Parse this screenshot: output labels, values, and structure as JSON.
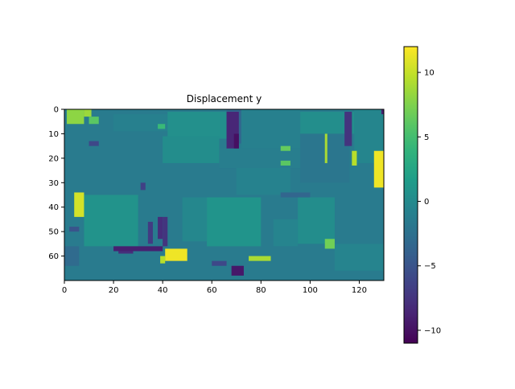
{
  "chart_data": {
    "type": "heatmap",
    "title": "Displacement y",
    "xlabel": "",
    "ylabel": "",
    "colormap": "viridis",
    "x_ticks": [
      0,
      20,
      40,
      60,
      80,
      100,
      120
    ],
    "y_ticks": [
      0,
      10,
      20,
      30,
      40,
      50,
      60
    ],
    "x_range": [
      0,
      130
    ],
    "y_range": [
      0,
      70
    ],
    "y_inverted": true,
    "color_range": [
      -11,
      12
    ],
    "colorbar_ticks": [
      10,
      5,
      0,
      -5,
      -10
    ],
    "colorbar_tick_labels": [
      "10",
      "5",
      "0",
      "−5",
      "−10"
    ],
    "background_value": -1.5,
    "blocks": [
      {
        "x": [
          0,
          130
        ],
        "y": [
          0,
          70
        ],
        "v": -1.5
      },
      {
        "x": [
          20,
          42
        ],
        "y": [
          2,
          9
        ],
        "v": -1.0
      },
      {
        "x": [
          42,
          66
        ],
        "y": [
          1,
          12
        ],
        "v": 0.5
      },
      {
        "x": [
          66,
          72
        ],
        "y": [
          0,
          14
        ],
        "v": -3.5
      },
      {
        "x": [
          72,
          96
        ],
        "y": [
          0,
          16
        ],
        "v": -1.0
      },
      {
        "x": [
          96,
          118
        ],
        "y": [
          1,
          10
        ],
        "v": 0.3
      },
      {
        "x": [
          118,
          130
        ],
        "y": [
          0,
          22
        ],
        "v": -0.5
      },
      {
        "x": [
          40,
          63
        ],
        "y": [
          11,
          22
        ],
        "v": 0.2
      },
      {
        "x": [
          63,
          100
        ],
        "y": [
          16,
          24
        ],
        "v": -1.2
      },
      {
        "x": [
          96,
          116
        ],
        "y": [
          10,
          30
        ],
        "v": -2.0
      },
      {
        "x": [
          70,
          92
        ],
        "y": [
          24,
          35
        ],
        "v": -0.8
      },
      {
        "x": [
          8,
          30
        ],
        "y": [
          35,
          56
        ],
        "v": 0.8
      },
      {
        "x": [
          48,
          58
        ],
        "y": [
          36,
          54
        ],
        "v": -0.3
      },
      {
        "x": [
          58,
          80
        ],
        "y": [
          36,
          56
        ],
        "v": 0.9
      },
      {
        "x": [
          95,
          110
        ],
        "y": [
          36,
          55
        ],
        "v": 0.2
      },
      {
        "x": [
          85,
          95
        ],
        "y": [
          45,
          56
        ],
        "v": -0.6
      },
      {
        "x": [
          110,
          130
        ],
        "y": [
          55,
          66
        ],
        "v": -0.6
      },
      {
        "x": [
          0,
          6
        ],
        "y": [
          56,
          64
        ],
        "v": -3.0
      },
      {
        "x": [
          88,
          100
        ],
        "y": [
          34,
          36
        ],
        "v": -3.5
      },
      {
        "x": [
          1,
          8
        ],
        "y": [
          0,
          6
        ],
        "v": 8.0
      },
      {
        "x": [
          8,
          11
        ],
        "y": [
          0,
          3
        ],
        "v": 8.5
      },
      {
        "x": [
          10,
          14
        ],
        "y": [
          3,
          6
        ],
        "v": 6.0
      },
      {
        "x": [
          4,
          8
        ],
        "y": [
          34,
          44
        ],
        "v": 10.5
      },
      {
        "x": [
          38,
          41
        ],
        "y": [
          6,
          8
        ],
        "v": 4.5
      },
      {
        "x": [
          39,
          41
        ],
        "y": [
          60,
          63
        ],
        "v": 9.5
      },
      {
        "x": [
          41,
          50
        ],
        "y": [
          57,
          62
        ],
        "v": 11.5
      },
      {
        "x": [
          75,
          84
        ],
        "y": [
          60,
          62
        ],
        "v": 9.0
      },
      {
        "x": [
          88,
          92
        ],
        "y": [
          15,
          17
        ],
        "v": 6.5
      },
      {
        "x": [
          88,
          92
        ],
        "y": [
          21,
          23
        ],
        "v": 6.0
      },
      {
        "x": [
          106,
          107
        ],
        "y": [
          10,
          22
        ],
        "v": 9.0
      },
      {
        "x": [
          117,
          119
        ],
        "y": [
          17,
          23
        ],
        "v": 9.5
      },
      {
        "x": [
          126,
          130
        ],
        "y": [
          17,
          32
        ],
        "v": 11.5
      },
      {
        "x": [
          106,
          110
        ],
        "y": [
          53,
          57
        ],
        "v": 7.0
      },
      {
        "x": [
          66,
          71
        ],
        "y": [
          1,
          16
        ],
        "v": -8.5
      },
      {
        "x": [
          69,
          71
        ],
        "y": [
          10,
          16
        ],
        "v": -10.0
      },
      {
        "x": [
          20,
          40
        ],
        "y": [
          56,
          58
        ],
        "v": -9.0
      },
      {
        "x": [
          22,
          28
        ],
        "y": [
          58,
          59
        ],
        "v": -8.0
      },
      {
        "x": [
          34,
          36
        ],
        "y": [
          46,
          55
        ],
        "v": -7.0
      },
      {
        "x": [
          38,
          40
        ],
        "y": [
          44,
          53
        ],
        "v": -8.0
      },
      {
        "x": [
          40,
          42
        ],
        "y": [
          44,
          56
        ],
        "v": -7.5
      },
      {
        "x": [
          68,
          73
        ],
        "y": [
          64,
          68
        ],
        "v": -9.5
      },
      {
        "x": [
          60,
          66
        ],
        "y": [
          62,
          64
        ],
        "v": -6.0
      },
      {
        "x": [
          10,
          14
        ],
        "y": [
          13,
          15
        ],
        "v": -6.0
      },
      {
        "x": [
          114,
          117
        ],
        "y": [
          1,
          15
        ],
        "v": -7.5
      },
      {
        "x": [
          129,
          130
        ],
        "y": [
          0,
          2
        ],
        "v": -9.0
      },
      {
        "x": [
          31,
          33
        ],
        "y": [
          30,
          33
        ],
        "v": -6.5
      },
      {
        "x": [
          2,
          6
        ],
        "y": [
          48,
          50
        ],
        "v": -5.0
      }
    ]
  }
}
